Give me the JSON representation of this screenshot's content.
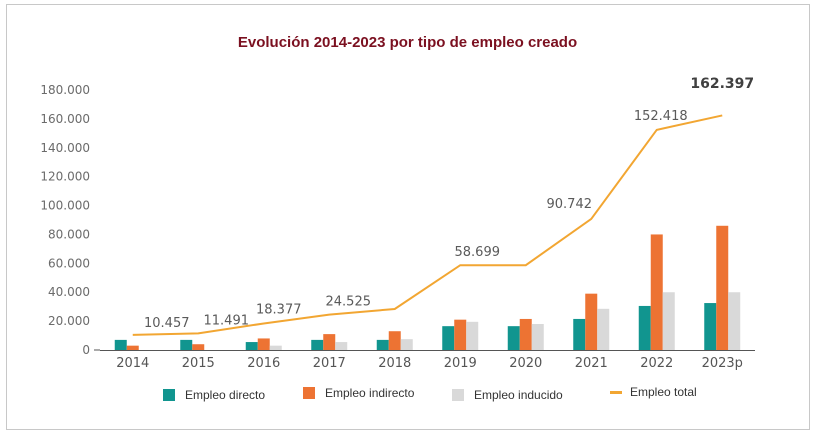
{
  "chart_data": {
    "type": "bar",
    "title": "Evolución 2014-2023 por tipo de empleo creado",
    "xlabel": "",
    "ylabel": "",
    "ylim": [
      0,
      180000
    ],
    "yticks": [
      0,
      20000,
      40000,
      60000,
      80000,
      100000,
      120000,
      140000,
      160000,
      180000
    ],
    "ytick_labels": [
      "0",
      "20.000",
      "40.000",
      "60.000",
      "80.000",
      "100.000",
      "120.000",
      "140.000",
      "160.000",
      "180.000"
    ],
    "grid": false,
    "legend_position": "bottom",
    "categories": [
      "2014",
      "2015",
      "2016",
      "2017",
      "2018",
      "2019",
      "2020",
      "2021",
      "2022",
      "2023p"
    ],
    "series": [
      {
        "name": "Empleo directo",
        "type": "bar",
        "color": "#11958f",
        "values": [
          7000,
          7000,
          5500,
          7000,
          7000,
          16500,
          16500,
          21500,
          30500,
          32500
        ]
      },
      {
        "name": "Empleo indirecto",
        "type": "bar",
        "color": "#ed7333",
        "values": [
          3000,
          4000,
          8000,
          11000,
          13000,
          21000,
          21500,
          39000,
          80000,
          86000
        ]
      },
      {
        "name": "Empleo inducido",
        "type": "bar",
        "color": "#d9d9d9",
        "values": [
          0,
          0,
          3000,
          5500,
          7500,
          19500,
          18000,
          28500,
          40000,
          40000
        ]
      },
      {
        "name": "Empleo total",
        "type": "line",
        "color": "#f2a632",
        "values": [
          10457,
          11491,
          18377,
          24525,
          28400,
          58699,
          58700,
          90742,
          152418,
          162397
        ]
      }
    ],
    "data_labels": [
      {
        "category": "2014",
        "text": "10.457",
        "bold": false
      },
      {
        "category": "2015",
        "text": "11.491",
        "bold": false
      },
      {
        "category": "2016",
        "text": "18.377",
        "bold": false
      },
      {
        "category": "2017",
        "text": "24.525",
        "bold": false
      },
      {
        "category": "2019",
        "text": "58.699",
        "bold": false
      },
      {
        "category": "2021",
        "text": "90.742",
        "bold": false
      },
      {
        "category": "2022",
        "text": "152.418",
        "bold": false
      },
      {
        "category": "2023p",
        "text": "162.397",
        "bold": true
      }
    ]
  },
  "legend": [
    {
      "label": "Empleo directo",
      "kind": "box",
      "color": "#11958f"
    },
    {
      "label": "Empleo indirecto",
      "kind": "box",
      "color": "#ed7333"
    },
    {
      "label": "Empleo inducido",
      "kind": "box",
      "color": "#d9d9d9"
    },
    {
      "label": "Empleo total",
      "kind": "line",
      "color": "#f2a632"
    }
  ]
}
